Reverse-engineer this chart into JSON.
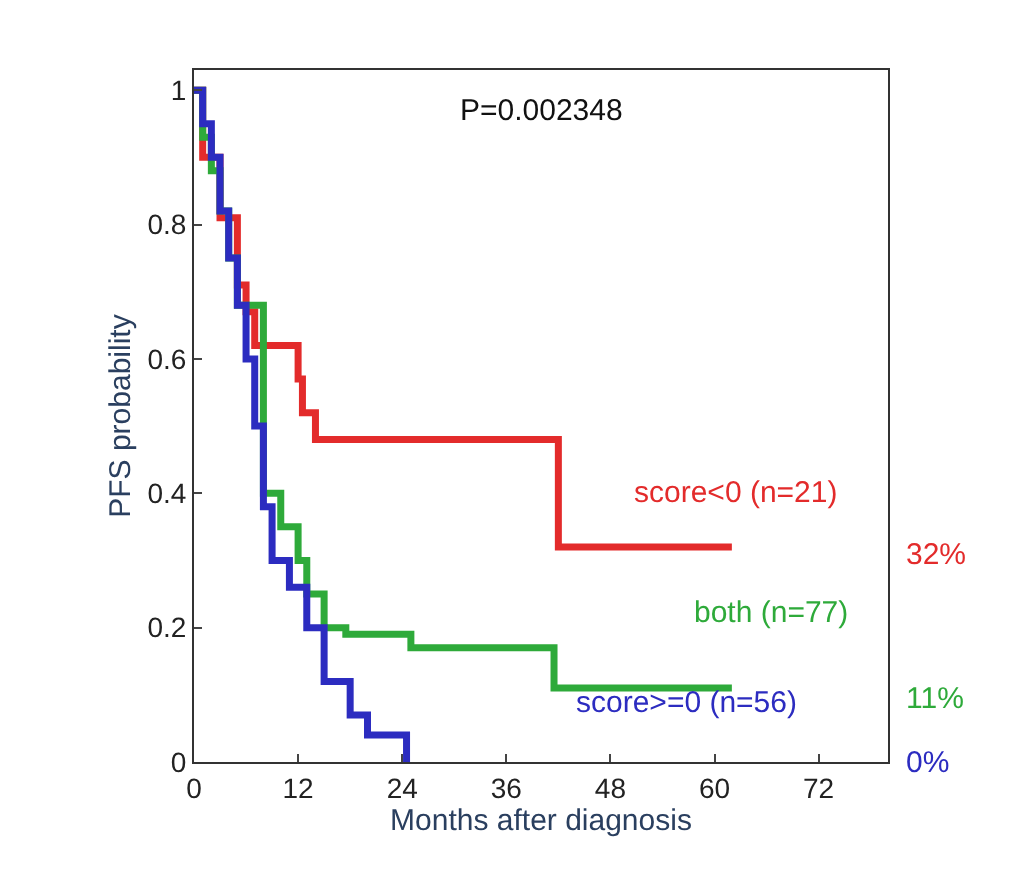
{
  "chart_data": {
    "type": "step",
    "xlabel": "Months after diagnosis",
    "ylabel": "PFS probability",
    "xlim": [
      0,
      80
    ],
    "xticks": [
      0,
      12,
      24,
      36,
      48,
      60,
      72
    ],
    "ylim": [
      0,
      1.03
    ],
    "yticks": [
      0,
      0.2,
      0.4,
      0.6,
      0.8,
      1
    ],
    "legend": false,
    "series": [
      {
        "name": "score<0 (n=21)",
        "color": "#e32b2b",
        "x": [
          0,
          1,
          3,
          5,
          6,
          7,
          12,
          12.5,
          13.5,
          14,
          42,
          62
        ],
        "values": [
          1,
          0.9,
          0.81,
          0.71,
          0.67,
          0.62,
          0.57,
          0.52,
          0.52,
          0.48,
          0.32,
          0.32
        ]
      },
      {
        "name": "both (n=77)",
        "color": "#2eaa3a",
        "x": [
          0,
          1,
          2,
          3,
          4,
          5,
          6,
          7,
          8,
          10,
          12,
          13,
          15,
          17.5,
          25,
          41.5,
          62
        ],
        "values": [
          1,
          0.93,
          0.88,
          0.82,
          0.75,
          0.68,
          null,
          null,
          0.4,
          0.35,
          0.3,
          0.25,
          0.2,
          0.19,
          0.17,
          0.11,
          0.11
        ]
      },
      {
        "name": "score>=0 (n=56)",
        "color": "#2c2cc0",
        "x": [
          0,
          1,
          2,
          3,
          4,
          5,
          6,
          7,
          8,
          9,
          11,
          13,
          15,
          18,
          20,
          24.5
        ],
        "values": [
          1,
          0.95,
          0.9,
          0.82,
          0.75,
          0.68,
          0.6,
          0.5,
          0.38,
          0.3,
          0.26,
          0.2,
          0.12,
          0.07,
          0.04,
          0
        ]
      }
    ],
    "annotations": [
      "P=0.002348",
      "32%",
      "11%",
      "0%"
    ]
  }
}
